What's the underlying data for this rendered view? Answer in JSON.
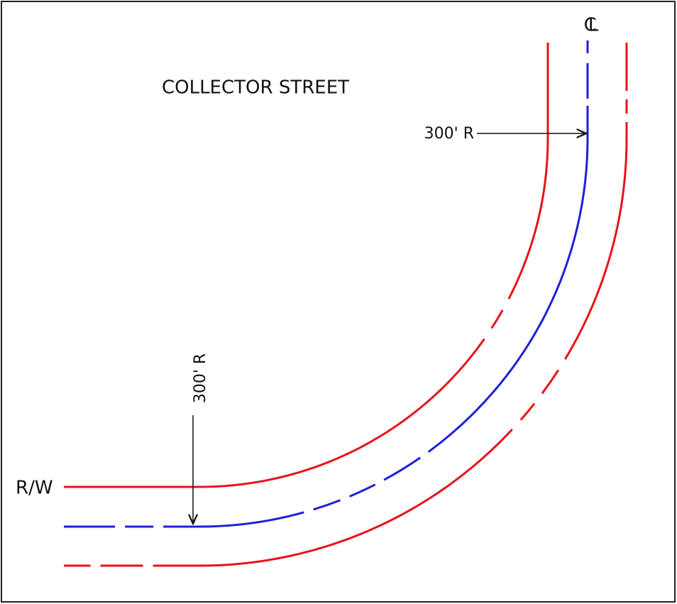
{
  "title": "COLLECTOR STREET",
  "labels": {
    "centerline": "CL",
    "radius_top": "300' R",
    "radius_bottom": "300' R",
    "right_of_way": "R/W"
  }
}
